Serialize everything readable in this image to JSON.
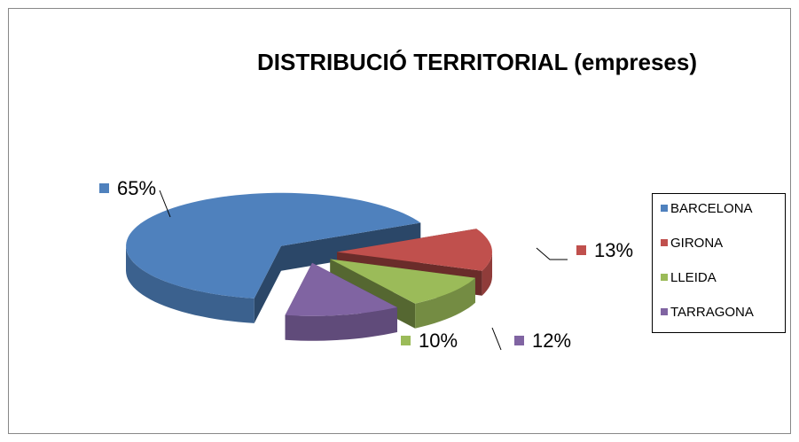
{
  "chart_data": {
    "type": "pie",
    "title": "DISTRIBUCIÓ TERRITORIAL (empreses)",
    "categories": [
      "BARCELONA",
      "GIRONA",
      "LLEIDA",
      "TARRAGONA"
    ],
    "values": [
      65,
      13,
      10,
      12
    ],
    "value_labels": [
      "65%",
      "13%",
      "10%",
      "12%"
    ],
    "colors": [
      "#4f81bd",
      "#c0504d",
      "#9bbb59",
      "#8064a2"
    ],
    "legend": "right"
  }
}
